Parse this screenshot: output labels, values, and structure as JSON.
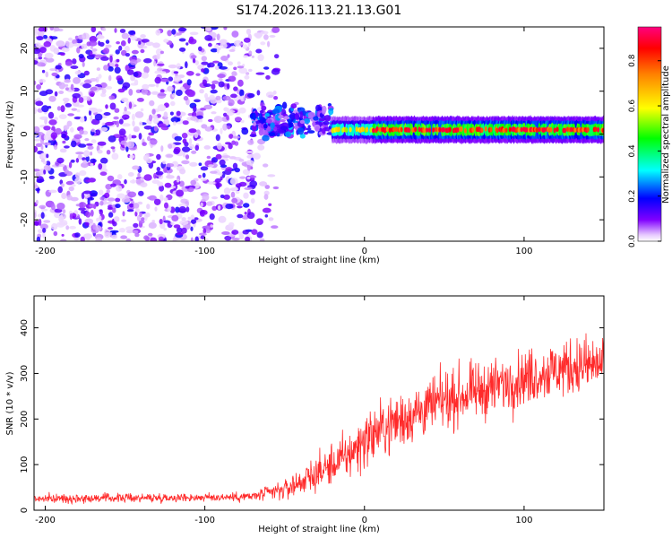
{
  "title": "S174.2026.113.21.13.G01",
  "chart_data": [
    {
      "type": "heatmap",
      "xlabel": "Height of straight line (km)",
      "ylabel": "Frequency (Hz)",
      "xlim": [
        -207,
        150
      ],
      "ylim": [
        -25,
        25
      ],
      "x_ticks": [
        -200,
        -100,
        0,
        100
      ],
      "x_tick_labels": [
        "-200",
        "-100",
        "0",
        "100"
      ],
      "y_ticks": [
        -20,
        -10,
        0,
        10,
        20
      ],
      "y_tick_labels": [
        "-20",
        "-10",
        "0",
        "10",
        "20"
      ],
      "colorbar": {
        "label": "Normalized spectral amplitude",
        "range": [
          0,
          0.95
        ],
        "ticks": [
          0.0,
          0.2,
          0.4,
          0.6,
          0.8
        ],
        "tick_labels": [
          "0.0",
          "0.2",
          "0.4",
          "0.6",
          "0.8"
        ]
      },
      "regions": [
        {
          "x_from": -207,
          "x_to": -70,
          "amplitude": 0.12,
          "description_value": "broadband noise"
        },
        {
          "x_from": -70,
          "x_to": -20,
          "amplitude": 0.25,
          "freq_spread": 10
        },
        {
          "x_from": -20,
          "x_to": 150,
          "amplitude": 0.9,
          "freq_center": 1
        }
      ]
    },
    {
      "type": "line",
      "xlabel": "Height of straight line (km)",
      "ylabel": "SNR (10 * v/v)",
      "xlim": [
        -207,
        150
      ],
      "ylim": [
        0,
        470
      ],
      "x_ticks": [
        -200,
        -100,
        0,
        100
      ],
      "x_tick_labels": [
        "-200",
        "-100",
        "0",
        "100"
      ],
      "y_ticks": [
        0,
        100,
        200,
        300,
        400
      ],
      "y_tick_labels": [
        "0",
        "100",
        "200",
        "300",
        "400"
      ],
      "series": [
        {
          "name": "SNR",
          "color": "#ff2a2a",
          "envelope_x": [
            -207,
            -150,
            -100,
            -70,
            -50,
            -30,
            -10,
            0,
            20,
            50,
            80,
            110,
            130,
            150
          ],
          "envelope_mean": [
            25,
            27,
            28,
            30,
            45,
            80,
            120,
            155,
            195,
            240,
            270,
            300,
            315,
            320
          ],
          "envelope_spread": [
            12,
            13,
            12,
            15,
            30,
            50,
            70,
            80,
            85,
            80,
            80,
            80,
            85,
            85
          ]
        }
      ]
    }
  ],
  "colors": {
    "heat_low": "#c8a8ff",
    "heat_mid": "#7a1fe0",
    "trace": "#ff2a2a"
  }
}
